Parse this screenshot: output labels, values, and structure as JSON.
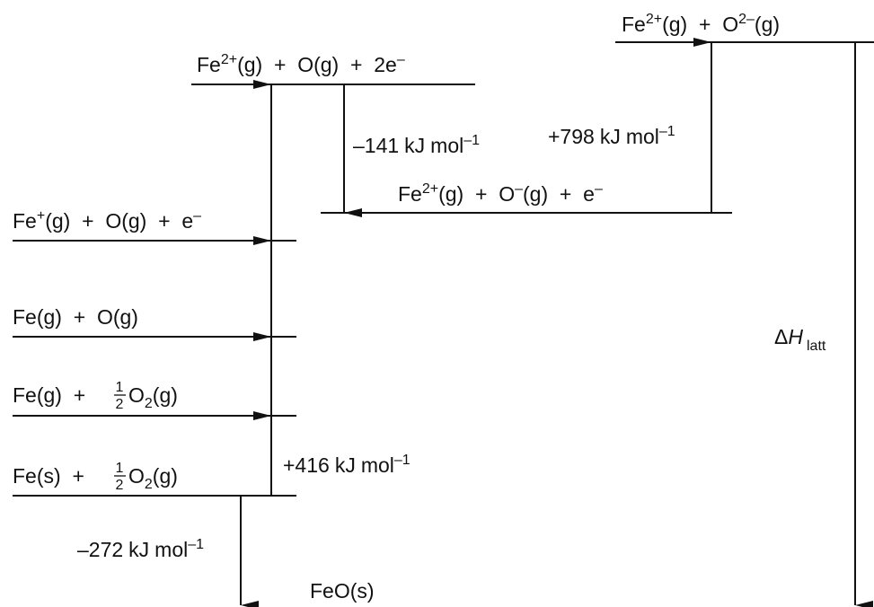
{
  "levels": {
    "fe2_o2m": {
      "fe": "Fe",
      "fe_charge": "2+",
      "fe_state": "(g)",
      "plus": "+",
      "o": "O",
      "o_charge": "2–",
      "o_state": "(g)"
    },
    "fe2_o_2e": {
      "fe": "Fe",
      "fe_charge": "2+",
      "fe_state": "(g)",
      "plus1": "+",
      "o": "O(g)",
      "plus2": "+",
      "e": "2e",
      "e_charge": "–"
    },
    "fe2_om_e": {
      "fe": "Fe",
      "fe_charge": "2+",
      "fe_state": "(g)",
      "plus1": "+",
      "o": "O",
      "o_charge": "–",
      "o_state": "(g)",
      "plus2": "+",
      "e": "e",
      "e_charge": "–"
    },
    "fep_o_e": {
      "fe": "Fe",
      "fe_charge": "+",
      "fe_state": "(g)",
      "plus1": "+",
      "o": "O(g)",
      "plus2": "+",
      "e": "e",
      "e_charge": "–"
    },
    "fe_o": {
      "fe": "Fe(g)",
      "plus": "+",
      "o": "O(g)"
    },
    "feg_halfo2": {
      "fe": "Fe(g)",
      "plus": "+",
      "half_num": "1",
      "half_den": "2",
      "o2": "O",
      "o2_sub": "2",
      "o2_state": "(g)"
    },
    "fes_halfo2": {
      "fe": "Fe(s)",
      "plus": "+",
      "half_num": "1",
      "half_den": "2",
      "o2": "O",
      "o2_sub": "2",
      "o2_state": "(g)"
    }
  },
  "energies": {
    "e_minus141": {
      "value": "–141",
      "unit": "kJ",
      "mol": "mol",
      "exp": "–1"
    },
    "e_plus798": {
      "value": "+798",
      "unit": "kJ",
      "mol": "mol",
      "exp": "–1"
    },
    "e_plus416": {
      "value": "+416",
      "unit": "kJ",
      "mol": "mol",
      "exp": "–1"
    },
    "e_minus272": {
      "value": "–272",
      "unit": "kJ",
      "mol": "mol",
      "exp": "–1"
    }
  },
  "product": "FeO(s)",
  "lattice": {
    "delta": "Δ",
    "h": "H",
    "sub": "latt"
  }
}
